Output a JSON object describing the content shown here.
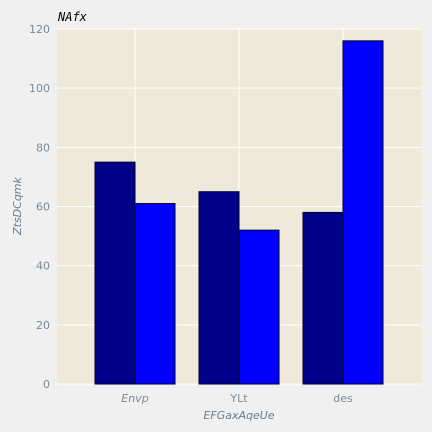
{
  "chart_data": {
    "type": "bar",
    "title": "NAfx",
    "xlabel": "EFGaxAqeUe",
    "ylabel": "ZtsDCqmk",
    "categories": [
      "Envp",
      "YLt",
      "des"
    ],
    "series": [
      {
        "values": [
          75,
          65,
          58
        ],
        "color": "#00008b"
      },
      {
        "values": [
          61,
          52,
          116
        ],
        "color": "#0000ff"
      }
    ],
    "ylim": [
      0,
      120
    ],
    "yticks": [
      0,
      20,
      40,
      60,
      80,
      100,
      120
    ],
    "grid": true,
    "legend": "none",
    "plot_background": "#efe9da"
  }
}
